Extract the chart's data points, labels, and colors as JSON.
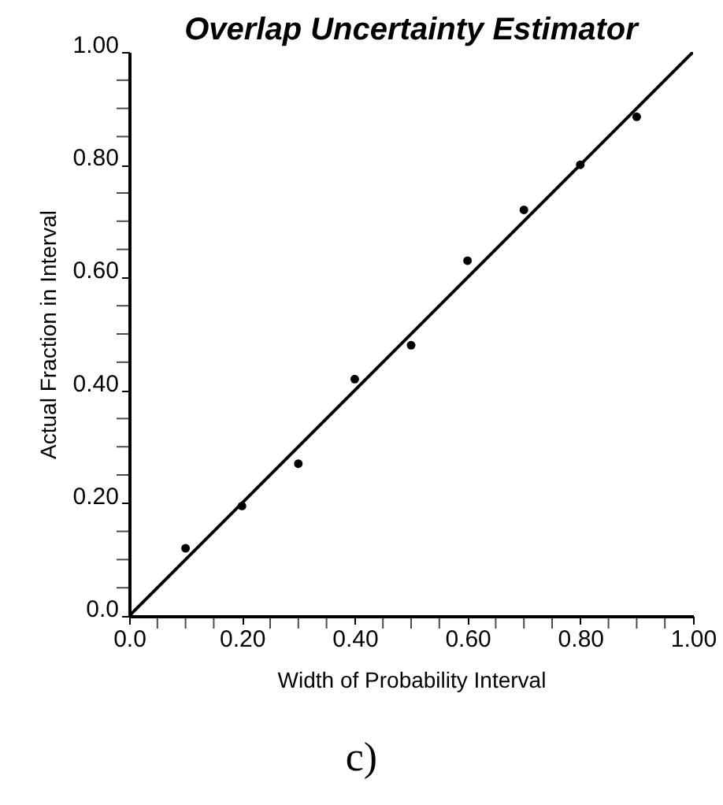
{
  "chart_data": {
    "type": "scatter",
    "title": "Overlap Uncertainty Estimator",
    "xlabel": "Width of Probability Interval",
    "ylabel": "Actual Fraction in Interval",
    "annotations": [
      "c)"
    ],
    "series": [
      {
        "type": "scatter",
        "color": "#000000",
        "marker": "circle",
        "x": [
          0.1,
          0.2,
          0.3,
          0.4,
          0.5,
          0.6,
          0.7,
          0.8,
          0.9
        ],
        "values": [
          0.12,
          0.195,
          0.27,
          0.42,
          0.48,
          0.63,
          0.72,
          0.8,
          0.885
        ]
      },
      {
        "type": "line",
        "color": "#000000",
        "line_style": "solid",
        "x": [
          0,
          1
        ],
        "values": [
          0,
          1
        ]
      }
    ],
    "xlim": [
      0,
      1
    ],
    "ylim": [
      0,
      1
    ],
    "xticks": [
      {
        "value": 0,
        "label": "0.0"
      },
      {
        "value": 0.05,
        "label": null
      },
      {
        "value": 0.1,
        "label": null
      },
      {
        "value": 0.15,
        "label": null
      },
      {
        "value": 0.2,
        "label": "0.20"
      },
      {
        "value": 0.25,
        "label": null
      },
      {
        "value": 0.3,
        "label": null
      },
      {
        "value": 0.35,
        "label": null
      },
      {
        "value": 0.4,
        "label": "0.40"
      },
      {
        "value": 0.45,
        "label": null
      },
      {
        "value": 0.5,
        "label": null
      },
      {
        "value": 0.55,
        "label": null
      },
      {
        "value": 0.6,
        "label": "0.60"
      },
      {
        "value": 0.65,
        "label": null
      },
      {
        "value": 0.7,
        "label": null
      },
      {
        "value": 0.75,
        "label": null
      },
      {
        "value": 0.8,
        "label": "0.80"
      },
      {
        "value": 0.85,
        "label": null
      },
      {
        "value": 0.9,
        "label": null
      },
      {
        "value": 0.95,
        "label": null
      },
      {
        "value": 1,
        "label": "1.00"
      }
    ],
    "yticks": [
      {
        "value": 0,
        "label": "0.0"
      },
      {
        "value": 0.05,
        "label": null
      },
      {
        "value": 0.1,
        "label": null
      },
      {
        "value": 0.15,
        "label": null
      },
      {
        "value": 0.2,
        "label": "0.20"
      },
      {
        "value": 0.25,
        "label": null
      },
      {
        "value": 0.3,
        "label": null
      },
      {
        "value": 0.35,
        "label": null
      },
      {
        "value": 0.4,
        "label": "0.40"
      },
      {
        "value": 0.45,
        "label": null
      },
      {
        "value": 0.5,
        "label": null
      },
      {
        "value": 0.55,
        "label": null
      },
      {
        "value": 0.6,
        "label": "0.60"
      },
      {
        "value": 0.65,
        "label": null
      },
      {
        "value": 0.7,
        "label": null
      },
      {
        "value": 0.75,
        "label": null
      },
      {
        "value": 0.8,
        "label": "0.80"
      },
      {
        "value": 0.85,
        "label": null
      },
      {
        "value": 0.9,
        "label": null
      },
      {
        "value": 0.95,
        "label": null
      },
      {
        "value": 1,
        "label": "1.00"
      }
    ],
    "grid": false
  }
}
